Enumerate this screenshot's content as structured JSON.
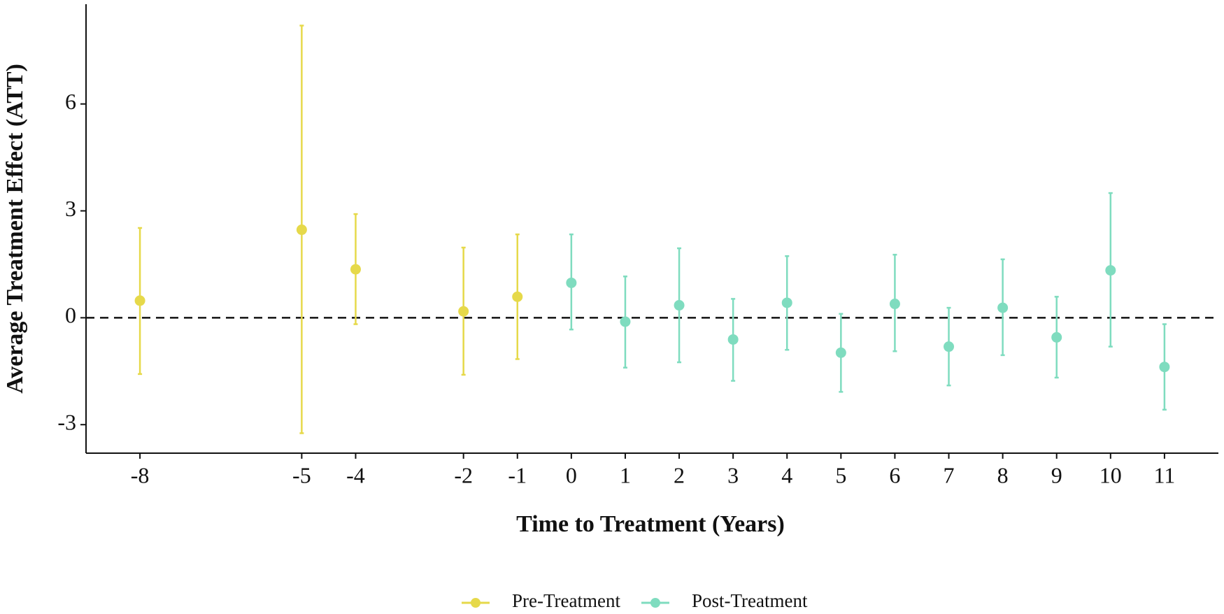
{
  "chart_data": {
    "type": "scatter",
    "xlabel": "Time to Treatment (Years)",
    "ylabel": "Average Treatment Effect (ATT)",
    "xlim": [
      -9,
      12
    ],
    "ylim": [
      -3.8,
      8.8
    ],
    "xticks": [
      -8,
      -5,
      -4,
      -2,
      -1,
      0,
      1,
      2,
      3,
      4,
      5,
      6,
      7,
      8,
      9,
      10,
      11
    ],
    "yticks": [
      -3,
      0,
      3,
      6
    ],
    "hline": 0,
    "grid": false,
    "legend": "bottom",
    "series": [
      {
        "name": "Pre-Treatment",
        "color": "#e6d94a",
        "x": [
          -8,
          -5,
          -4,
          -2,
          -1
        ],
        "values": [
          0.48,
          2.47,
          1.36,
          0.18,
          0.59
        ],
        "lower": [
          -1.58,
          -3.24,
          -0.18,
          -1.6,
          -1.16
        ],
        "upper": [
          2.52,
          8.2,
          2.91,
          1.97,
          2.34
        ]
      },
      {
        "name": "Post-Treatment",
        "color": "#7fdcbf",
        "x": [
          0,
          1,
          2,
          3,
          4,
          5,
          6,
          7,
          8,
          9,
          10,
          11
        ],
        "values": [
          0.98,
          -0.11,
          0.35,
          -0.61,
          0.42,
          -0.98,
          0.39,
          -0.81,
          0.28,
          -0.55,
          1.33,
          -1.38
        ],
        "lower": [
          -0.33,
          -1.4,
          -1.25,
          -1.77,
          -0.9,
          -2.08,
          -0.94,
          -1.9,
          -1.05,
          -1.68,
          -0.81,
          -2.58
        ],
        "upper": [
          2.34,
          1.16,
          1.95,
          0.53,
          1.73,
          0.11,
          1.77,
          0.28,
          1.64,
          0.59,
          3.5,
          -0.18
        ]
      }
    ]
  }
}
